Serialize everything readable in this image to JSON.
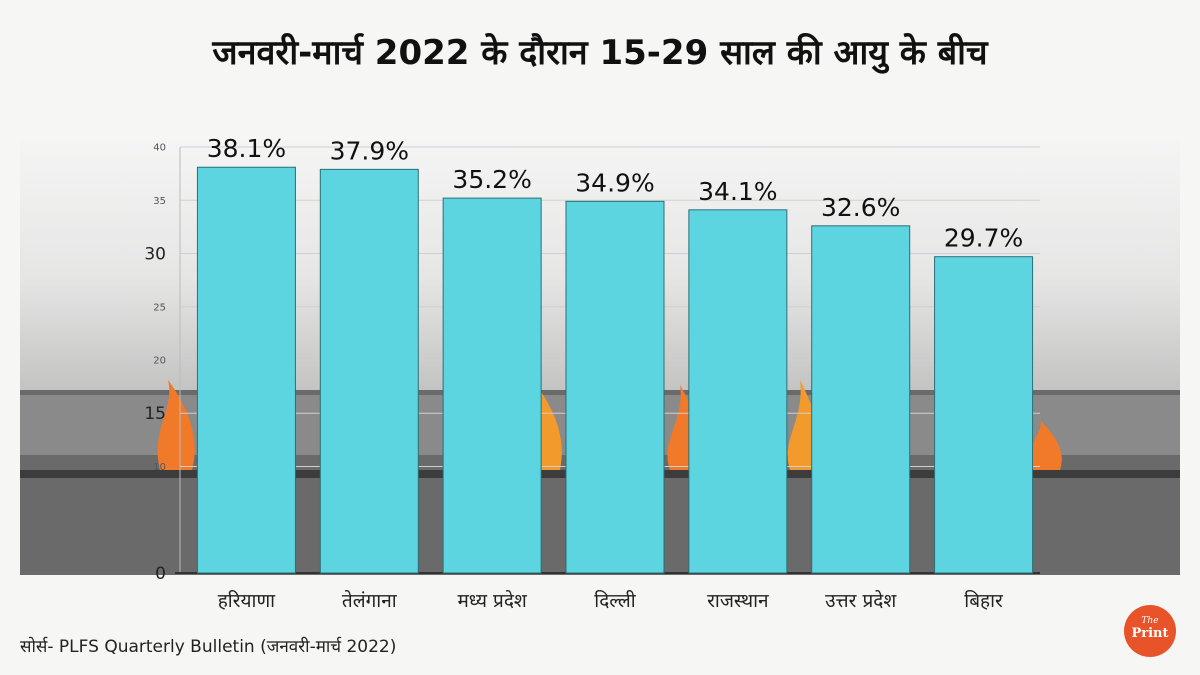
{
  "title": "जनवरी-मार्च 2022 के दौरान 15-29 साल की आयु के बीच",
  "source": "सोर्स- PLFS Quarterly Bulletin (जनवरी-मार्च 2022)",
  "logo": {
    "small": "The",
    "main": "Print"
  },
  "colors": {
    "bar": "#5dd5e0",
    "bar_edge": "#2a6f78",
    "text": "#111111",
    "accent": "#e8532a"
  },
  "chart_data": {
    "type": "bar",
    "title": "जनवरी-मार्च 2022 के दौरान 15-29 साल की आयु के बीच",
    "xlabel": "",
    "ylabel": "",
    "ylim": [
      0,
      40
    ],
    "yticks": [
      0,
      10,
      15,
      20,
      25,
      30,
      35,
      40
    ],
    "categories": [
      "हरियाणा",
      "तेलंगाना",
      "मध्य प्रदेश",
      "दिल्ली",
      "राजस्थान",
      "उत्तर प्रदेश",
      "बिहार"
    ],
    "values": [
      38.1,
      37.9,
      35.2,
      34.9,
      34.1,
      32.6,
      29.7
    ],
    "labels": [
      "38.1%",
      "37.9%",
      "35.2%",
      "34.9%",
      "34.1%",
      "32.6%",
      "29.7%"
    ],
    "grid": true,
    "legend": "none"
  }
}
